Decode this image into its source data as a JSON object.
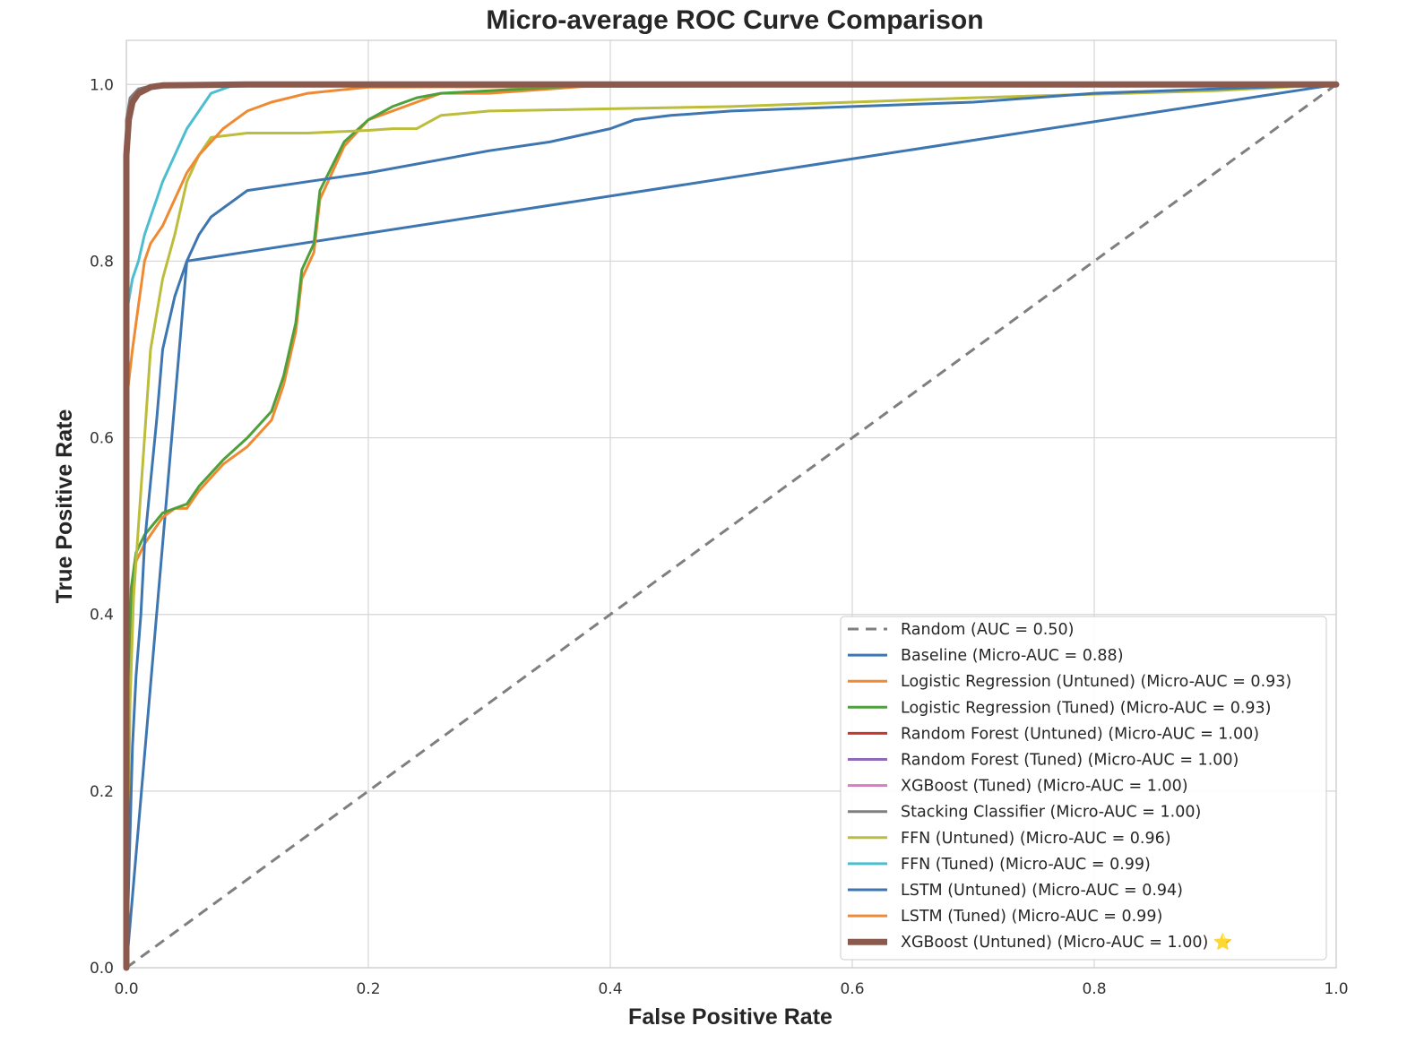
{
  "chart_data": {
    "type": "line",
    "title": "Micro-average ROC Curve Comparison",
    "xlabel": "False Positive Rate",
    "ylabel": "True Positive Rate",
    "xlim": [
      0,
      1
    ],
    "ylim": [
      0,
      1.05
    ],
    "x_ticks": [
      "0.0",
      "0.2",
      "0.4",
      "0.6",
      "0.8",
      "1.0"
    ],
    "y_ticks": [
      "0.0",
      "0.2",
      "0.4",
      "0.6",
      "0.8",
      "1.0"
    ],
    "grid": true,
    "legend_position": "lower-right",
    "colors": {
      "blue": "#3d76b0",
      "orange": "#f08a32",
      "green": "#4da03a",
      "red": "#c9352f",
      "purple": "#8d6bb8",
      "pink": "#e079c3",
      "gray": "#7f7f7f",
      "olive": "#bcbd3a",
      "cyan": "#4dbdd0",
      "brown": "#8c5a4c"
    },
    "series": [
      {
        "name": "Random (AUC = 0.50)",
        "color": "#7f7f7f",
        "dashed": true,
        "points": [
          [
            0,
            0
          ],
          [
            1,
            1
          ]
        ]
      },
      {
        "name": "Baseline (Micro-AUC = 0.88)",
        "color": "#3d76b0",
        "points": [
          [
            0,
            0
          ],
          [
            0.05,
            0.8
          ],
          [
            1,
            1
          ]
        ]
      },
      {
        "name": "Logistic Regression (Untuned) (Micro-AUC = 0.93)",
        "color": "#f08a32",
        "points": [
          [
            0,
            0
          ],
          [
            0.002,
            0.3
          ],
          [
            0.004,
            0.42
          ],
          [
            0.008,
            0.46
          ],
          [
            0.015,
            0.48
          ],
          [
            0.03,
            0.51
          ],
          [
            0.04,
            0.52
          ],
          [
            0.05,
            0.52
          ],
          [
            0.06,
            0.54
          ],
          [
            0.08,
            0.57
          ],
          [
            0.1,
            0.59
          ],
          [
            0.12,
            0.62
          ],
          [
            0.125,
            0.64
          ],
          [
            0.13,
            0.66
          ],
          [
            0.14,
            0.72
          ],
          [
            0.145,
            0.78
          ],
          [
            0.155,
            0.81
          ],
          [
            0.16,
            0.87
          ],
          [
            0.18,
            0.93
          ],
          [
            0.2,
            0.96
          ],
          [
            0.22,
            0.97
          ],
          [
            0.24,
            0.98
          ],
          [
            0.26,
            0.99
          ],
          [
            0.3,
            0.99
          ],
          [
            0.4,
            1.0
          ],
          [
            1,
            1
          ]
        ]
      },
      {
        "name": "Logistic Regression (Tuned) (Micro-AUC = 0.93)",
        "color": "#4da03a",
        "points": [
          [
            0,
            0
          ],
          [
            0.002,
            0.3
          ],
          [
            0.004,
            0.43
          ],
          [
            0.008,
            0.47
          ],
          [
            0.015,
            0.49
          ],
          [
            0.03,
            0.515
          ],
          [
            0.04,
            0.52
          ],
          [
            0.05,
            0.525
          ],
          [
            0.06,
            0.545
          ],
          [
            0.08,
            0.575
          ],
          [
            0.1,
            0.6
          ],
          [
            0.12,
            0.63
          ],
          [
            0.125,
            0.65
          ],
          [
            0.13,
            0.67
          ],
          [
            0.14,
            0.73
          ],
          [
            0.145,
            0.79
          ],
          [
            0.155,
            0.82
          ],
          [
            0.16,
            0.88
          ],
          [
            0.18,
            0.935
          ],
          [
            0.2,
            0.96
          ],
          [
            0.22,
            0.975
          ],
          [
            0.24,
            0.985
          ],
          [
            0.26,
            0.99
          ],
          [
            0.3,
            0.993
          ],
          [
            0.37,
            0.998
          ],
          [
            1,
            1
          ]
        ]
      },
      {
        "name": "Random Forest (Untuned) (Micro-AUC = 1.00)",
        "color": "#c9352f",
        "points": [
          [
            0,
            0
          ],
          [
            0,
            0.95
          ],
          [
            0.003,
            0.98
          ],
          [
            0.01,
            0.99
          ],
          [
            0.03,
            1.0
          ],
          [
            1,
            1
          ]
        ]
      },
      {
        "name": "Random Forest (Tuned) (Micro-AUC = 1.00)",
        "color": "#8d6bb8",
        "points": [
          [
            0,
            0
          ],
          [
            0,
            0.95
          ],
          [
            0.003,
            0.98
          ],
          [
            0.01,
            0.99
          ],
          [
            0.03,
            1.0
          ],
          [
            1,
            1
          ]
        ]
      },
      {
        "name": "XGBoost (Tuned) (Micro-AUC = 1.00)",
        "color": "#e079c3",
        "points": [
          [
            0,
            0
          ],
          [
            0,
            0.95
          ],
          [
            0.003,
            0.98
          ],
          [
            0.01,
            0.99
          ],
          [
            0.03,
            1.0
          ],
          [
            1,
            1
          ]
        ]
      },
      {
        "name": "Stacking Classifier (Micro-AUC = 1.00)",
        "color": "#7f7f7f",
        "points": [
          [
            0,
            0
          ],
          [
            0,
            0.96
          ],
          [
            0.003,
            0.985
          ],
          [
            0.01,
            0.995
          ],
          [
            0.025,
            1.0
          ],
          [
            1,
            1
          ]
        ]
      },
      {
        "name": "FFN (Untuned) (Micro-AUC = 0.96)",
        "color": "#bcbd3a",
        "points": [
          [
            0,
            0
          ],
          [
            0.003,
            0.3
          ],
          [
            0.006,
            0.42
          ],
          [
            0.01,
            0.5
          ],
          [
            0.015,
            0.6
          ],
          [
            0.02,
            0.7
          ],
          [
            0.03,
            0.78
          ],
          [
            0.04,
            0.83
          ],
          [
            0.05,
            0.89
          ],
          [
            0.06,
            0.92
          ],
          [
            0.07,
            0.94
          ],
          [
            0.1,
            0.945
          ],
          [
            0.15,
            0.945
          ],
          [
            0.2,
            0.948
          ],
          [
            0.22,
            0.95
          ],
          [
            0.24,
            0.95
          ],
          [
            0.26,
            0.965
          ],
          [
            0.3,
            0.97
          ],
          [
            0.5,
            0.975
          ],
          [
            0.7,
            0.985
          ],
          [
            0.9,
            0.993
          ],
          [
            1,
            1
          ]
        ]
      },
      {
        "name": "FFN (Tuned) (Micro-AUC = 0.99)",
        "color": "#4dbdd0",
        "points": [
          [
            0,
            0
          ],
          [
            0,
            0.74
          ],
          [
            0.005,
            0.78
          ],
          [
            0.01,
            0.8
          ],
          [
            0.015,
            0.83
          ],
          [
            0.02,
            0.85
          ],
          [
            0.025,
            0.87
          ],
          [
            0.03,
            0.89
          ],
          [
            0.04,
            0.92
          ],
          [
            0.05,
            0.95
          ],
          [
            0.06,
            0.97
          ],
          [
            0.07,
            0.99
          ],
          [
            0.09,
            1.0
          ],
          [
            1,
            1
          ]
        ]
      },
      {
        "name": "LSTM (Untuned) (Micro-AUC = 0.94)",
        "color": "#3d76b0",
        "points": [
          [
            0,
            0
          ],
          [
            0.005,
            0.25
          ],
          [
            0.008,
            0.33
          ],
          [
            0.012,
            0.4
          ],
          [
            0.015,
            0.48
          ],
          [
            0.02,
            0.55
          ],
          [
            0.025,
            0.62
          ],
          [
            0.03,
            0.7
          ],
          [
            0.04,
            0.76
          ],
          [
            0.05,
            0.8
          ],
          [
            0.06,
            0.83
          ],
          [
            0.07,
            0.85
          ],
          [
            0.09,
            0.87
          ],
          [
            0.1,
            0.88
          ],
          [
            0.15,
            0.89
          ],
          [
            0.2,
            0.9
          ],
          [
            0.3,
            0.925
          ],
          [
            0.35,
            0.935
          ],
          [
            0.4,
            0.95
          ],
          [
            0.42,
            0.96
          ],
          [
            0.45,
            0.965
          ],
          [
            0.5,
            0.97
          ],
          [
            0.6,
            0.975
          ],
          [
            0.7,
            0.98
          ],
          [
            0.8,
            0.99
          ],
          [
            0.9,
            0.995
          ],
          [
            1,
            1
          ]
        ]
      },
      {
        "name": "LSTM (Tuned) (Micro-AUC = 0.99)",
        "color": "#f08a32",
        "points": [
          [
            0,
            0
          ],
          [
            0,
            0.64
          ],
          [
            0.005,
            0.7
          ],
          [
            0.01,
            0.75
          ],
          [
            0.015,
            0.8
          ],
          [
            0.02,
            0.82
          ],
          [
            0.03,
            0.84
          ],
          [
            0.04,
            0.87
          ],
          [
            0.05,
            0.9
          ],
          [
            0.06,
            0.92
          ],
          [
            0.08,
            0.95
          ],
          [
            0.1,
            0.97
          ],
          [
            0.12,
            0.98
          ],
          [
            0.15,
            0.99
          ],
          [
            0.2,
            0.997
          ],
          [
            1,
            1
          ]
        ]
      },
      {
        "name": "XGBoost (Untuned) (Micro-AUC = 1.00) ⭐",
        "color": "#8c5a4c",
        "thick": true,
        "points": [
          [
            0,
            0
          ],
          [
            0,
            0.92
          ],
          [
            0.002,
            0.96
          ],
          [
            0.005,
            0.98
          ],
          [
            0.01,
            0.99
          ],
          [
            0.02,
            0.997
          ],
          [
            0.03,
            0.999
          ],
          [
            0.1,
            1.0
          ],
          [
            1,
            1
          ]
        ]
      }
    ]
  }
}
